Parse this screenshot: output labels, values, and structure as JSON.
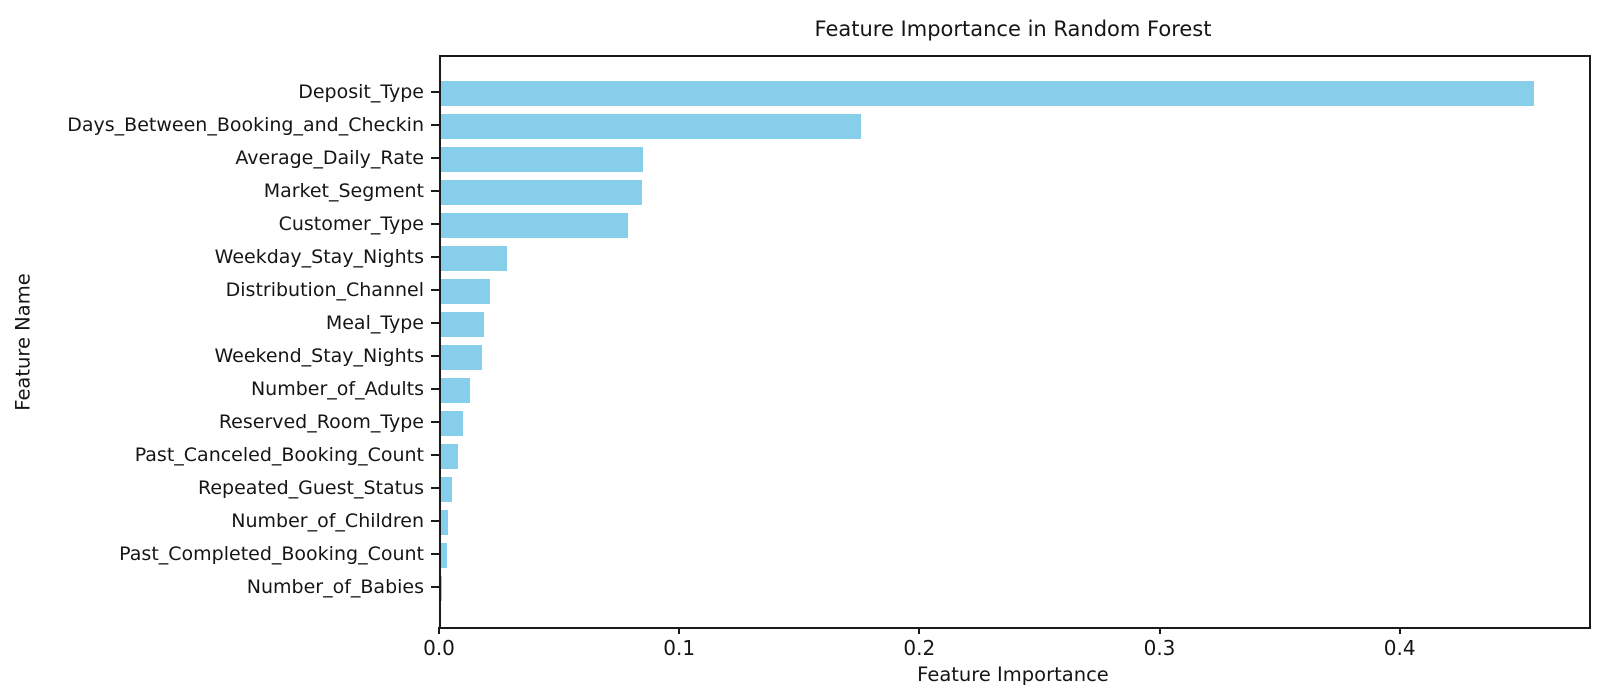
{
  "chart_data": {
    "type": "bar",
    "orientation": "horizontal",
    "title": "Feature Importance in Random Forest",
    "xlabel": "Feature Importance",
    "ylabel": "Feature Name",
    "categories": [
      "Deposit_Type",
      "Days_Between_Booking_and_Checkin",
      "Average_Daily_Rate",
      "Market_Segment",
      "Customer_Type",
      "Weekday_Stay_Nights",
      "Distribution_Channel",
      "Meal_Type",
      "Weekend_Stay_Nights",
      "Number_of_Adults",
      "Reserved_Room_Type",
      "Past_Canceled_Booking_Count",
      "Repeated_Guest_Status",
      "Number_of_Children",
      "Past_Completed_Booking_Count",
      "Number_of_Babies"
    ],
    "values": [
      0.455,
      0.175,
      0.084,
      0.0835,
      0.078,
      0.0275,
      0.0205,
      0.0177,
      0.0169,
      0.0121,
      0.009,
      0.007,
      0.0045,
      0.0031,
      0.0024,
      0.0003
    ],
    "x_ticks": [
      0.0,
      0.1,
      0.2,
      0.3,
      0.4
    ],
    "x_tick_labels": [
      "0.0",
      "0.1",
      "0.2",
      "0.3",
      "0.4"
    ],
    "xlim": [
      0,
      0.478
    ],
    "bar_color": "#87CEEB",
    "spine_color": "#1a1a1a",
    "grid": false,
    "legend": "none"
  }
}
